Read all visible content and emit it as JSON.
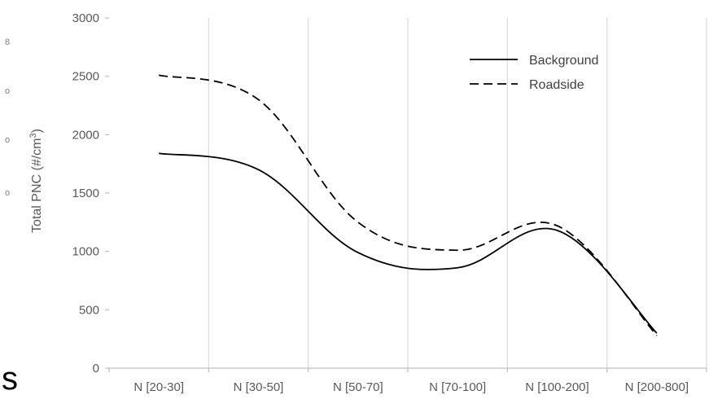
{
  "chart_data": {
    "type": "line",
    "title": "",
    "xlabel": "",
    "ylabel": "Total PNC (#/cm",
    "ylabel_sup": "3",
    "ylabel_suffix": ")",
    "categories": [
      "N [20-30]",
      "N [30-50]",
      "N [50-70]",
      "N [70-100]",
      "N [100-200]",
      "N [200-800]"
    ],
    "ylim": [
      0,
      3000
    ],
    "yticks": [
      0,
      500,
      1000,
      1500,
      2000,
      2500,
      3000
    ],
    "grid": "vertical",
    "legend": "top-right",
    "series": [
      {
        "name": "Background",
        "style": "solid",
        "color": "#000000",
        "values": [
          1840,
          1700,
          990,
          860,
          1180,
          300
        ]
      },
      {
        "name": "Roadside",
        "style": "dashed",
        "color": "#000000",
        "values": [
          2510,
          2300,
          1250,
          1010,
          1220,
          280
        ]
      }
    ]
  }
}
